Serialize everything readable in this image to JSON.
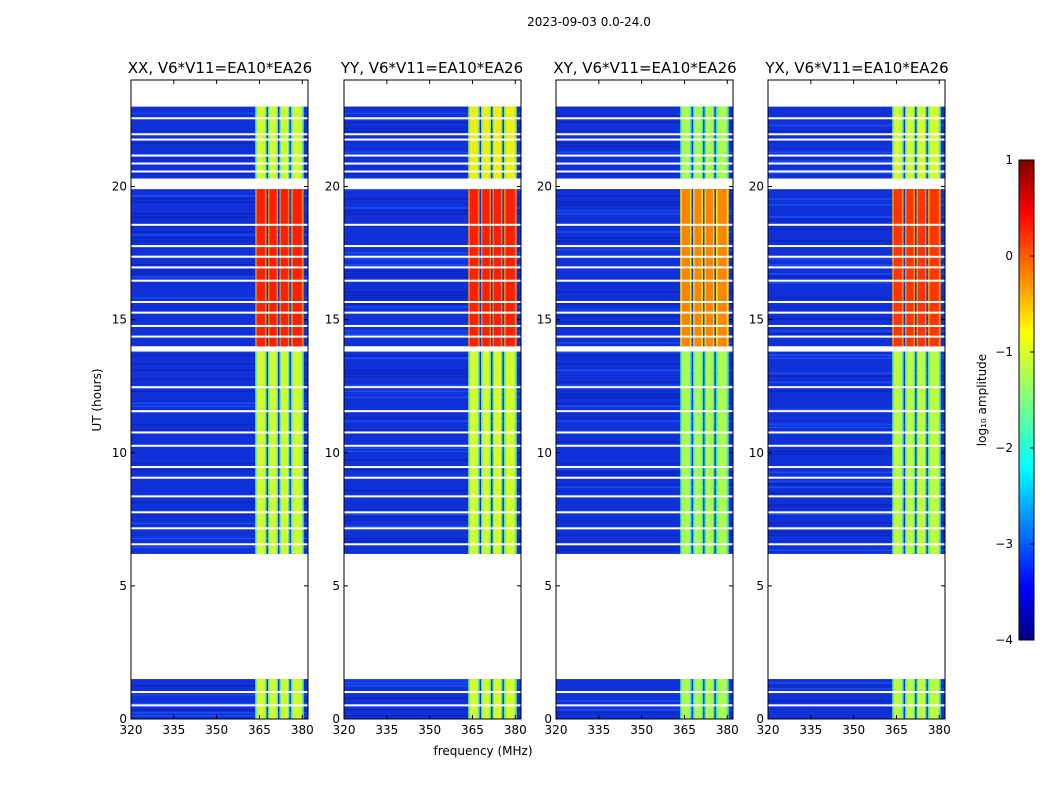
{
  "chart_data": {
    "type": "heatmap",
    "suptitle": "2023-09-03 0.0-24.0",
    "xlabel": "frequency (MHz)",
    "ylabel": "UT (hours)",
    "xlim": [
      320,
      382
    ],
    "ylim": [
      0,
      24
    ],
    "xticks": [
      320,
      335,
      350,
      365,
      380
    ],
    "yticks": [
      0,
      5,
      10,
      15,
      20
    ],
    "colorbar": {
      "label": "log₁₀ amplitude",
      "colormap": "jet",
      "range": [
        -4,
        1
      ],
      "ticks": [
        -4,
        -3,
        -2,
        -1,
        0,
        1
      ]
    },
    "panels": [
      {
        "title": "XX, V6*V11=EA10*EA26",
        "band_levels": [
          -1.0,
          -1.0,
          0.3,
          -1.0,
          -1.0
        ]
      },
      {
        "title": "YY, V6*V11=EA10*EA26",
        "band_levels": [
          -1.0,
          -1.0,
          0.3,
          -0.8,
          -1.0
        ]
      },
      {
        "title": "XY, V6*V11=EA10*EA26",
        "band_levels": [
          -1.2,
          -1.2,
          -0.2,
          -1.2,
          -1.2
        ]
      },
      {
        "title": "YX, V6*V11=EA10*EA26",
        "band_levels": [
          -1.1,
          -1.1,
          0.2,
          -1.0,
          -1.1
        ]
      }
    ],
    "data_segments_hours": [
      [
        0.0,
        1.5
      ],
      [
        6.2,
        13.8
      ],
      [
        14.0,
        19.9
      ],
      [
        20.3,
        23.0
      ]
    ],
    "rfi_band_mhz": [
      363.5,
      380.5
    ],
    "rfi_subbands_mhz": [
      [
        363.5,
        367.5
      ],
      [
        368.0,
        371.5
      ],
      [
        372.0,
        375.5
      ],
      [
        376.0,
        380.5
      ]
    ]
  }
}
